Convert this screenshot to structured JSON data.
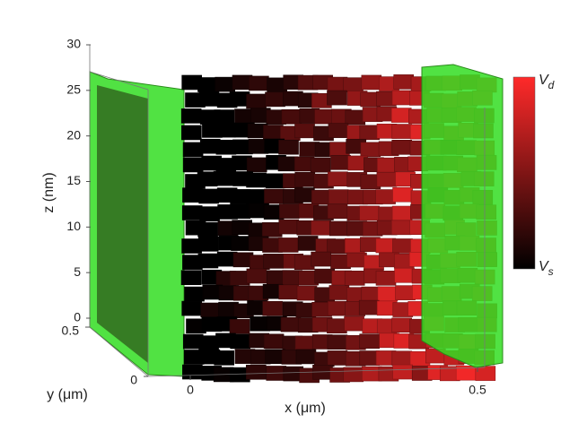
{
  "chart_data": {
    "type": "voxel3d",
    "zlabel": "z (nm)",
    "xlabel": "x (μm)",
    "ylabel": "y (μm)",
    "zlim": [
      0,
      30
    ],
    "zticks": [
      0,
      5,
      10,
      15,
      20,
      25,
      30
    ],
    "xlim": [
      0,
      0.5
    ],
    "xticks": [
      0,
      0.5
    ],
    "ylim": [
      0,
      0.5
    ],
    "yticks": [
      0,
      0.5
    ],
    "colorbar": {
      "top_label": "V",
      "top_sub": "d",
      "bottom_label": "V",
      "bottom_sub": "s",
      "low_color": "#000000",
      "high_color": "#ff2a2a"
    },
    "contact_color": "#33dd22"
  }
}
